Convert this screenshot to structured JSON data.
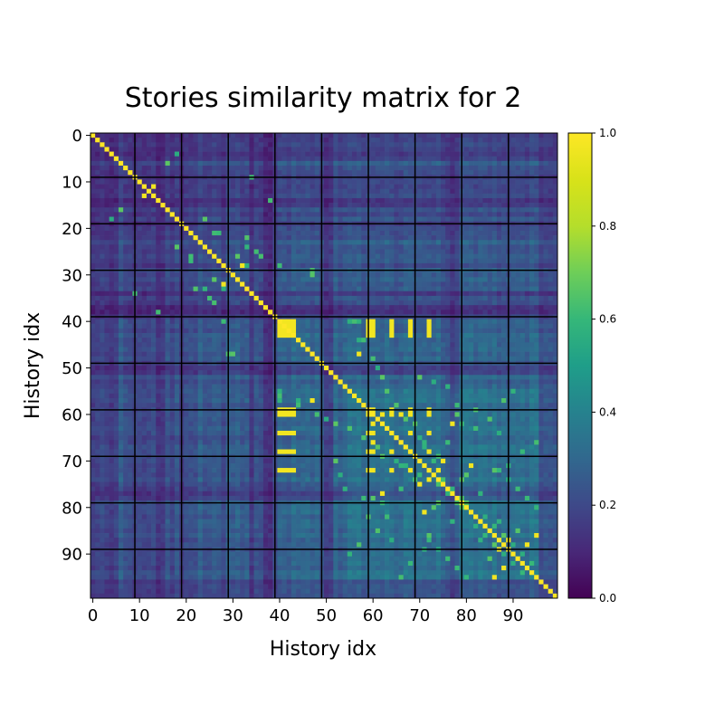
{
  "chart_data": {
    "type": "heatmap",
    "title": "Stories similarity matrix for 2",
    "xlabel": "History idx",
    "ylabel": "History idx",
    "size": 100,
    "x_ticks": [
      "0",
      "10",
      "20",
      "30",
      "40",
      "50",
      "60",
      "70",
      "80",
      "90"
    ],
    "y_ticks": [
      "0",
      "10",
      "20",
      "30",
      "40",
      "50",
      "60",
      "70",
      "80",
      "90"
    ],
    "value_range": [
      0.0,
      1.0
    ],
    "diagonal_value": 1.0,
    "grid": true,
    "grid_color": "#000000",
    "colormap": "viridis",
    "colorbar": {
      "ticks": [
        "0.0",
        "0.2",
        "0.4",
        "0.6",
        "0.8",
        "1.0"
      ],
      "tick_values": [
        0.0,
        0.2,
        0.4,
        0.6,
        0.8,
        1.0
      ]
    },
    "highlight_cells": [
      [
        40,
        41
      ],
      [
        40,
        42
      ],
      [
        40,
        43
      ],
      [
        40,
        59
      ],
      [
        40,
        60
      ],
      [
        40,
        64
      ],
      [
        40,
        68
      ],
      [
        40,
        72
      ],
      [
        41,
        42
      ],
      [
        41,
        43
      ],
      [
        41,
        59
      ],
      [
        41,
        60
      ],
      [
        41,
        64
      ],
      [
        41,
        68
      ],
      [
        41,
        72
      ],
      [
        42,
        43
      ],
      [
        42,
        59
      ],
      [
        42,
        60
      ],
      [
        42,
        64
      ],
      [
        42,
        68
      ],
      [
        42,
        72
      ],
      [
        43,
        59
      ],
      [
        43,
        60
      ],
      [
        43,
        64
      ],
      [
        43,
        68
      ],
      [
        43,
        72
      ],
      [
        59,
        60
      ],
      [
        59,
        64
      ],
      [
        59,
        68
      ],
      [
        59,
        72
      ],
      [
        60,
        62
      ],
      [
        60,
        64
      ],
      [
        60,
        66
      ],
      [
        60,
        68
      ],
      [
        60,
        72
      ],
      [
        64,
        68
      ],
      [
        64,
        72
      ],
      [
        68,
        72
      ],
      [
        72,
        74
      ],
      [
        70,
        75
      ],
      [
        88,
        93
      ],
      [
        87,
        89
      ],
      [
        81,
        71
      ],
      [
        86,
        95
      ],
      [
        62,
        77
      ],
      [
        47,
        57
      ],
      [
        28,
        32
      ],
      [
        11,
        13
      ]
    ],
    "green_cells": [
      [
        26,
        21
      ],
      [
        27,
        21
      ],
      [
        36,
        26
      ],
      [
        33,
        22
      ],
      [
        33,
        24
      ],
      [
        33,
        28
      ],
      [
        25,
        35
      ],
      [
        28,
        40
      ],
      [
        29,
        47
      ],
      [
        44,
        57
      ],
      [
        47,
        30
      ],
      [
        55,
        40
      ],
      [
        56,
        40
      ],
      [
        57,
        40
      ],
      [
        58,
        44
      ],
      [
        60,
        48
      ],
      [
        61,
        50
      ],
      [
        62,
        52
      ],
      [
        63,
        55
      ],
      [
        65,
        58
      ],
      [
        66,
        60
      ],
      [
        67,
        61
      ],
      [
        69,
        62
      ],
      [
        70,
        65
      ],
      [
        71,
        67
      ],
      [
        73,
        70
      ],
      [
        75,
        74
      ],
      [
        76,
        77
      ],
      [
        79,
        78
      ],
      [
        80,
        79
      ],
      [
        82,
        84
      ],
      [
        84,
        86
      ],
      [
        86,
        88
      ],
      [
        88,
        90
      ],
      [
        90,
        92
      ],
      [
        92,
        94
      ],
      [
        78,
        60
      ],
      [
        79,
        62
      ],
      [
        76,
        66
      ],
      [
        73,
        80
      ],
      [
        72,
        86
      ],
      [
        71,
        89
      ],
      [
        68,
        92
      ],
      [
        66,
        95
      ],
      [
        64,
        87
      ],
      [
        61,
        85
      ],
      [
        59,
        82
      ],
      [
        57,
        88
      ],
      [
        55,
        90
      ],
      [
        52,
        70
      ],
      [
        53,
        73
      ],
      [
        54,
        76
      ],
      [
        58,
        78
      ],
      [
        63,
        82
      ],
      [
        66,
        71
      ],
      [
        69,
        74
      ],
      [
        74,
        79
      ],
      [
        77,
        83
      ],
      [
        83,
        87
      ],
      [
        85,
        91
      ],
      [
        87,
        72
      ],
      [
        89,
        74
      ],
      [
        91,
        76
      ],
      [
        93,
        78
      ],
      [
        95,
        80
      ],
      [
        16,
        6
      ],
      [
        18,
        4
      ],
      [
        24,
        18
      ],
      [
        31,
        26
      ],
      [
        34,
        9
      ],
      [
        38,
        14
      ]
    ]
  }
}
